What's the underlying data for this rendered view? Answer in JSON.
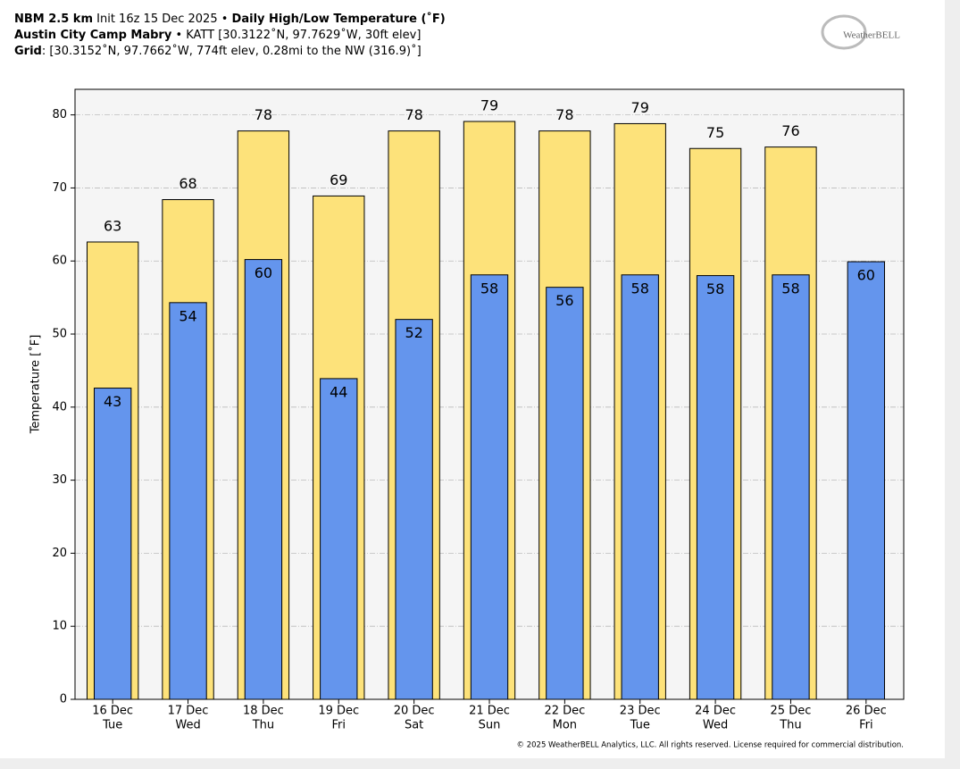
{
  "chart_data": {
    "type": "bar",
    "header": {
      "line1_bold_a": "NBM 2.5 km",
      "line1_normal": "Init 16z 15 Dec 2025 •",
      "line1_bold_b": "Daily High/Low Temperature (˚F)",
      "line2_bold": "Austin City Camp Mabry",
      "line2_normal": "• KATT [30.3122˚N, 97.7629˚W, 30ft elev]",
      "line3_bold": "Grid",
      "line3_normal": ": [30.3152˚N, 97.7662˚W, 774ft elev, 0.28mi to the NW (316.9)˚]"
    },
    "logo": "WeatherBELL",
    "footer": "© 2025 WeatherBELL Analytics, LLC. All rights reserved. License required for commercial distribution.",
    "y_label": "Temperature [˚F]",
    "categories": [
      "16 Dec",
      "17 Dec",
      "18 Dec",
      "19 Dec",
      "20 Dec",
      "21 Dec",
      "22 Dec",
      "23 Dec",
      "24 Dec",
      "25 Dec",
      "26 Dec"
    ],
    "category_sublabels": [
      "Tue",
      "Wed",
      "Thu",
      "Fri",
      "Sat",
      "Sun",
      "Mon",
      "Tue",
      "Wed",
      "Thu",
      "Fri"
    ],
    "series": [
      {
        "name": "High",
        "color": "#fde27a",
        "values": [
          62.6,
          68.4,
          77.8,
          68.9,
          77.8,
          79.1,
          77.8,
          78.8,
          75.4,
          75.6,
          null
        ],
        "value_labels": [
          "63",
          "68",
          "78",
          "69",
          "78",
          "79",
          "78",
          "79",
          "75",
          "76",
          null
        ]
      },
      {
        "name": "Low",
        "color": "#6495ed",
        "values": [
          42.6,
          54.3,
          60.2,
          43.9,
          52.0,
          58.1,
          56.4,
          58.1,
          58.0,
          58.1,
          59.9
        ],
        "value_labels": [
          "43",
          "54",
          "60",
          "44",
          "52",
          "58",
          "56",
          "58",
          "58",
          "58",
          "60"
        ]
      }
    ],
    "ylim": [
      0,
      83.5
    ],
    "yticks": [
      0,
      10,
      20,
      30,
      40,
      50,
      60,
      70,
      80
    ],
    "grid": true
  }
}
